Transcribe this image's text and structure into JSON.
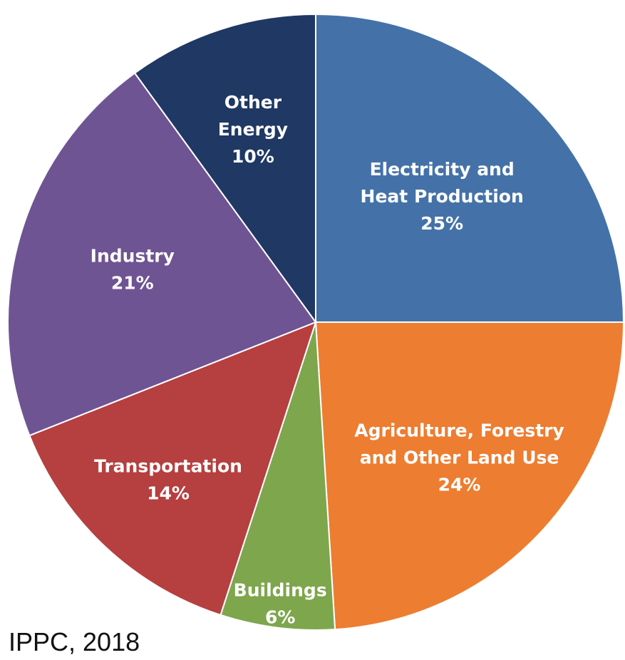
{
  "chart_data": {
    "type": "pie",
    "slices": [
      {
        "name": "Electricity and Heat Production",
        "lines": [
          "Electricity and",
          "Heat Production"
        ],
        "value": 25,
        "label": "25%",
        "color": "#4472a8"
      },
      {
        "name": "Agriculture, Forestry and Other Land Use",
        "lines": [
          "Agriculture, Forestry",
          "and Other Land Use"
        ],
        "value": 24,
        "label": "24%",
        "color": "#ed7d31"
      },
      {
        "name": "Buildings",
        "lines": [
          "Buildings"
        ],
        "value": 6,
        "label": "6%",
        "color": "#7ea64d"
      },
      {
        "name": "Transportation",
        "lines": [
          "Transportation"
        ],
        "value": 14,
        "label": "14%",
        "color": "#b5403f"
      },
      {
        "name": "Industry",
        "lines": [
          "Industry"
        ],
        "value": 21,
        "label": "21%",
        "color": "#6f5494"
      },
      {
        "name": "Other Energy",
        "lines": [
          "Other",
          "Energy"
        ],
        "value": 10,
        "label": "10%",
        "color": "#1f3864"
      }
    ],
    "start": "12 o'clock",
    "direction": "clockwise"
  },
  "source_text": "IPPC, 2018"
}
